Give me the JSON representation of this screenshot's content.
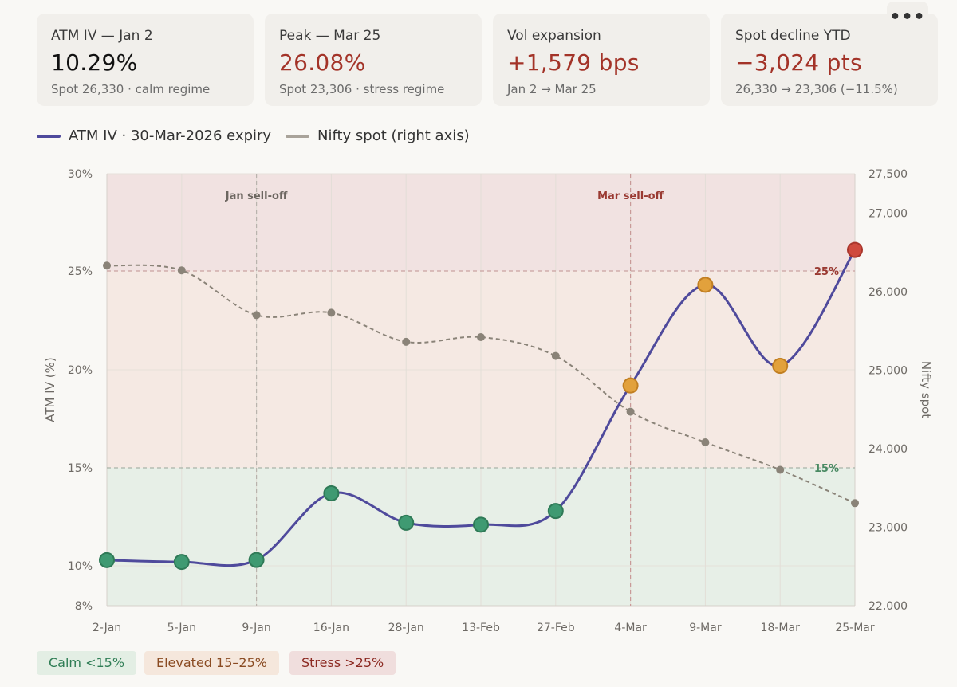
{
  "cards": [
    {
      "label": "ATM IV — Jan 2",
      "value": "10.29%",
      "sub": "Spot 26,330 · calm regime",
      "value_color": "dark"
    },
    {
      "label": "Peak — Mar 25",
      "value": "26.08%",
      "sub": "Spot 23,306 · stress regime",
      "value_color": "red"
    },
    {
      "label": "Vol expansion",
      "value": "+1,579 bps",
      "sub": "Jan 2 → Mar 25",
      "value_color": "red"
    },
    {
      "label": "Spot decline YTD",
      "value": "−3,024 pts",
      "sub": "26,330 → 23,306 (−11.5%)",
      "value_color": "red"
    }
  ],
  "more_button": {
    "icon": "more-horizontal-icon",
    "glyph": "•••"
  },
  "legend": {
    "iv_label": "ATM IV · 30-Mar-2026 expiry",
    "spot_label": "Nifty spot (right axis)"
  },
  "regimes": {
    "calm": "Calm <15%",
    "elevated": "Elevated 15–25%",
    "stress": "Stress >25%"
  },
  "colors": {
    "iv_line": "#4f4a9c",
    "spot_line": "#8a8378",
    "calm_point": "#3f9a72",
    "elevated_point": "#e2a13c",
    "stress_point": "#cf4a3e",
    "calm_band": "#e7efe7",
    "elevated_band": "#f5e9e3",
    "stress_band": "#f1e2e1"
  },
  "chart_data": {
    "type": "line",
    "categories": [
      "2-Jan",
      "5-Jan",
      "9-Jan",
      "16-Jan",
      "28-Jan",
      "13-Feb",
      "27-Feb",
      "4-Mar",
      "9-Mar",
      "18-Mar",
      "25-Mar"
    ],
    "series": [
      {
        "name": "ATM IV · 30-Mar-2026 expiry",
        "axis": "left",
        "values": [
          10.29,
          10.2,
          10.3,
          13.7,
          12.2,
          12.1,
          12.8,
          19.2,
          24.3,
          20.2,
          26.08
        ]
      },
      {
        "name": "Nifty spot (right axis)",
        "axis": "right",
        "values": [
          26330,
          26270,
          25700,
          25730,
          25360,
          25420,
          25180,
          24470,
          24080,
          23730,
          23306
        ]
      }
    ],
    "ylabel": "ATM IV (%)",
    "y2label": "Nifty spot",
    "y_ticks": [
      8,
      10,
      15,
      20,
      25,
      30
    ],
    "y_tick_labels": [
      "8%",
      "10%",
      "15%",
      "20%",
      "25%",
      "30%"
    ],
    "y2_ticks": [
      22000,
      23000,
      24000,
      25000,
      26000,
      27000,
      27500
    ],
    "y2_tick_labels": [
      "22,000",
      "23,000",
      "24,000",
      "25,000",
      "26,000",
      "27,000",
      "27,500"
    ],
    "ylim": [
      8,
      30
    ],
    "y2lim": [
      22000,
      27500
    ],
    "thresholds": [
      {
        "value": 25,
        "label": "25%"
      },
      {
        "value": 15,
        "label": "15%"
      }
    ],
    "annotations": [
      {
        "category": "9-Jan",
        "label": "Jan sell-off"
      },
      {
        "category": "4-Mar",
        "label": "Mar sell-off"
      }
    ],
    "grid": true,
    "legend_position": "top-left"
  }
}
